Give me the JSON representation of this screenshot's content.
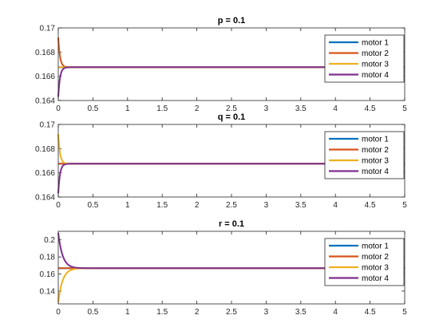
{
  "chart_data": [
    {
      "type": "line",
      "title": "p = 0.1",
      "xlim": [
        0,
        5
      ],
      "ylim": [
        0.164,
        0.17
      ],
      "xticks": [
        0,
        0.5,
        1,
        1.5,
        2,
        2.5,
        3,
        3.5,
        4,
        4.5,
        5
      ],
      "xtick_labels": [
        "0",
        "0.5",
        "1",
        "1.5",
        "2",
        "2.5",
        "3",
        "3.5",
        "4",
        "4.5",
        "5"
      ],
      "yticks": [
        0.164,
        0.166,
        0.168,
        0.17
      ],
      "ytick_labels": [
        "0.164",
        "0.166",
        "0.168",
        "0.17"
      ],
      "legend_position": "top-right",
      "steady_value": 0.16675,
      "series": [
        {
          "name": "motor 1",
          "color": "#0072BD",
          "start": 0.16675,
          "settle_time": 0.1
        },
        {
          "name": "motor 2",
          "color": "#D95319",
          "start": 0.1692,
          "settle_time": 0.1
        },
        {
          "name": "motor 3",
          "color": "#EDB120",
          "start": 0.16675,
          "settle_time": 0.1
        },
        {
          "name": "motor 4",
          "color": "#7E2F8E",
          "start": 0.1643,
          "settle_time": 0.1
        }
      ]
    },
    {
      "type": "line",
      "title": "q = 0.1",
      "xlim": [
        0,
        5
      ],
      "ylim": [
        0.164,
        0.17
      ],
      "xticks": [
        0,
        0.5,
        1,
        1.5,
        2,
        2.5,
        3,
        3.5,
        4,
        4.5,
        5
      ],
      "xtick_labels": [
        "0",
        "0.5",
        "1",
        "1.5",
        "2",
        "2.5",
        "3",
        "3.5",
        "4",
        "4.5",
        "5"
      ],
      "yticks": [
        0.164,
        0.166,
        0.168,
        0.17
      ],
      "ytick_labels": [
        "0.164",
        "0.166",
        "0.168",
        "0.17"
      ],
      "legend_position": "top-right",
      "steady_value": 0.16675,
      "series": [
        {
          "name": "motor 1",
          "color": "#0072BD",
          "start": 0.16675,
          "settle_time": 0.1
        },
        {
          "name": "motor 2",
          "color": "#D95319",
          "start": 0.16675,
          "settle_time": 0.1
        },
        {
          "name": "motor 3",
          "color": "#EDB120",
          "start": 0.1692,
          "settle_time": 0.1
        },
        {
          "name": "motor 4",
          "color": "#7E2F8E",
          "start": 0.1643,
          "settle_time": 0.1
        }
      ]
    },
    {
      "type": "line",
      "title": "r = 0.1",
      "xlim": [
        0,
        5
      ],
      "ylim": [
        0.125,
        0.21
      ],
      "xticks": [
        0,
        0.5,
        1,
        1.5,
        2,
        2.5,
        3,
        3.5,
        4,
        4.5,
        5
      ],
      "xtick_labels": [
        "0",
        "0.5",
        "1",
        "1.5",
        "2",
        "2.5",
        "3",
        "3.5",
        "4",
        "4.5",
        "5"
      ],
      "yticks": [
        0.14,
        0.16,
        0.18,
        0.2
      ],
      "ytick_labels": [
        "0.14",
        "0.16",
        "0.18",
        "0.2"
      ],
      "legend_position": "top-right",
      "steady_value": 0.16675,
      "series": [
        {
          "name": "motor 1",
          "color": "#0072BD",
          "start": 0.16675,
          "settle_time": 0.25
        },
        {
          "name": "motor 2",
          "color": "#D95319",
          "start": 0.16675,
          "settle_time": 0.25
        },
        {
          "name": "motor 3",
          "color": "#EDB120",
          "start": 0.127,
          "settle_time": 0.25
        },
        {
          "name": "motor 4",
          "color": "#7E2F8E",
          "start": 0.208,
          "settle_time": 0.25
        }
      ]
    }
  ]
}
